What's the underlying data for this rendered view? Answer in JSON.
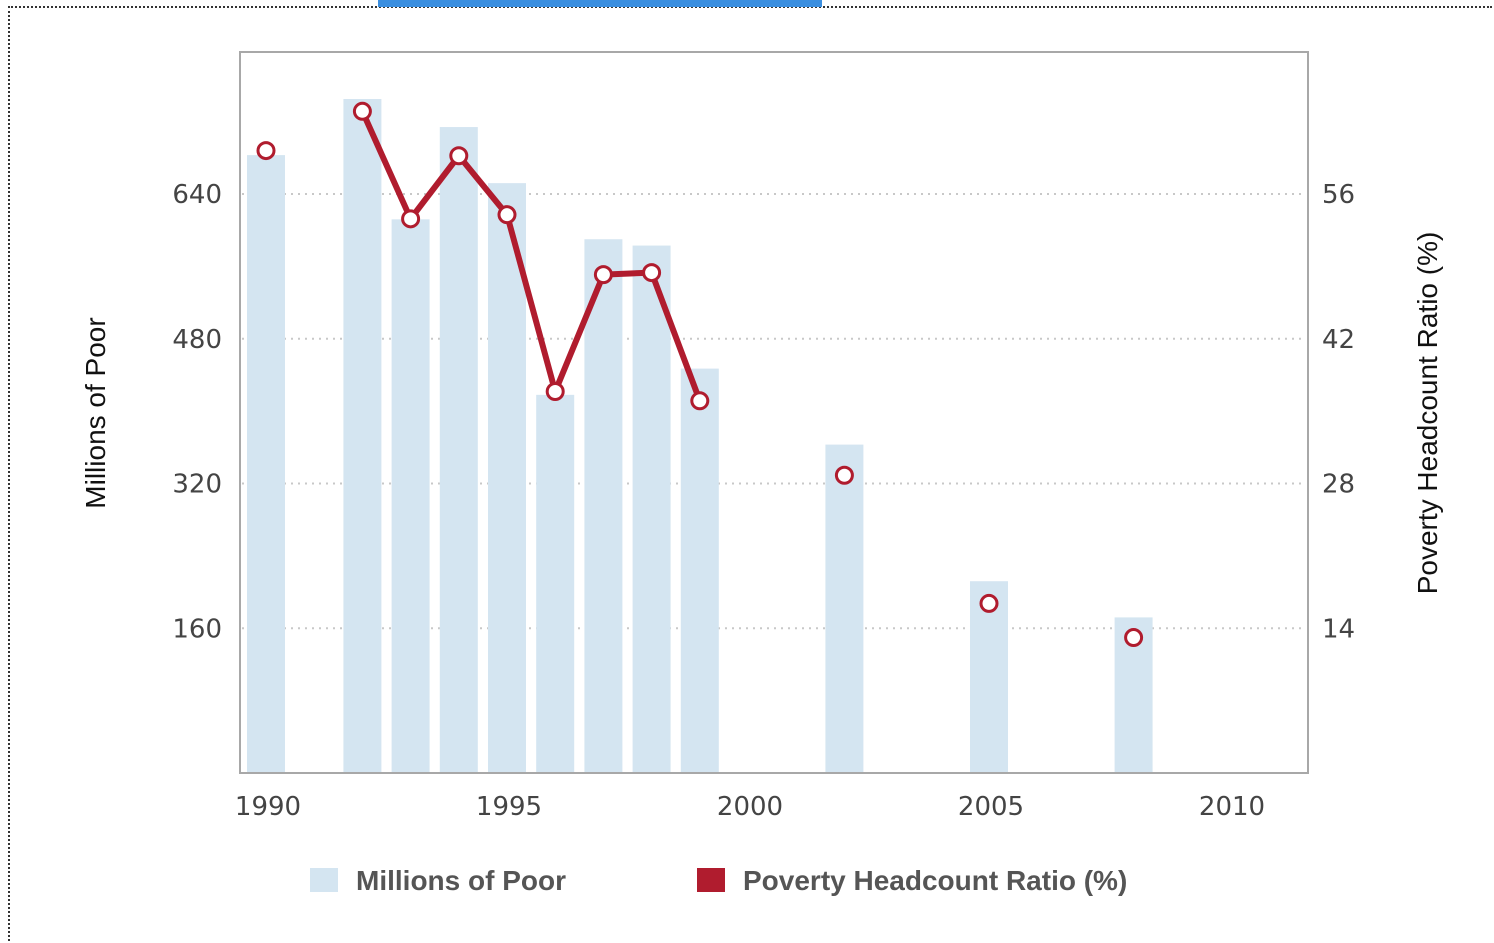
{
  "chart_data": {
    "type": "bar",
    "title": "",
    "x_axis": {
      "min": 1990,
      "max": 2011,
      "ticks": [
        "1990",
        "1995",
        "2000",
        "2005",
        "2010"
      ]
    },
    "y_left": {
      "label": "Millions of Poor",
      "min": 0,
      "max": 800,
      "ticks": [
        "160",
        "320",
        "480",
        "640"
      ]
    },
    "y_right": {
      "label": "Poverty Headcount Ratio (%)",
      "min": 0,
      "max": 70,
      "ticks": [
        "14",
        "28",
        "42",
        "56"
      ]
    },
    "grid": true,
    "legend_position": "bottom",
    "series": [
      {
        "name": "Millions of Poor",
        "type": "bar",
        "color": "#d4e5f1",
        "x": [
          1990,
          1992,
          1993,
          1994,
          1995,
          1996,
          1997,
          1998,
          1999,
          2002,
          2005,
          2008
        ],
        "values": [
          683,
          745,
          612,
          714,
          652,
          418,
          590,
          583,
          447,
          363,
          212,
          172
        ]
      },
      {
        "name": "Poverty Headcount Ratio (%)",
        "type": "line",
        "color": "#b01c2e",
        "x": [
          1990,
          1992,
          1993,
          1994,
          1995,
          1996,
          1997,
          1998,
          1999,
          2002,
          2005,
          2008
        ],
        "values": [
          60.2,
          64.0,
          53.6,
          59.7,
          54.0,
          36.9,
          48.2,
          48.4,
          36.0,
          28.8,
          16.4,
          13.1
        ],
        "connect_until": 1999
      }
    ]
  }
}
